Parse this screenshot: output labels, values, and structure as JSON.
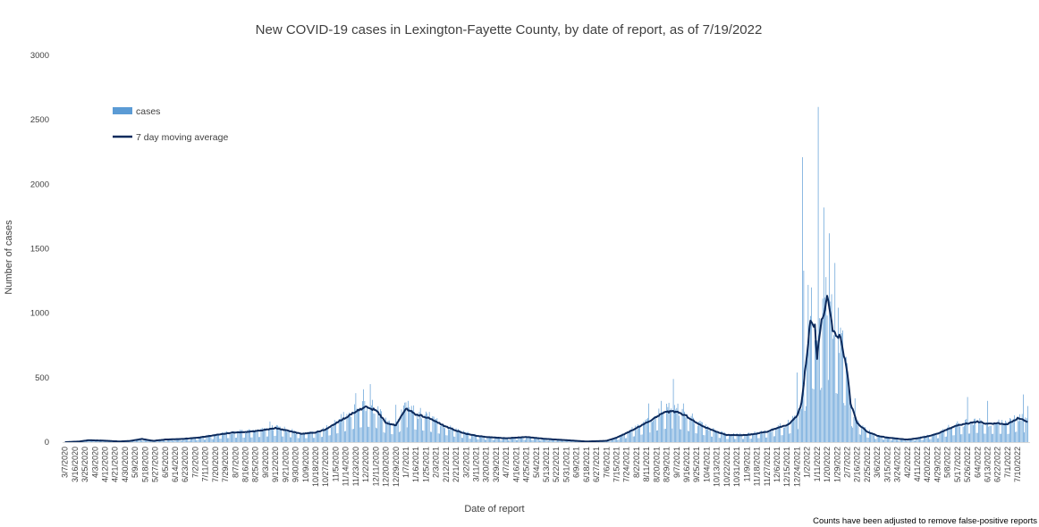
{
  "chart_data": {
    "type": "bar",
    "title": "New COVID-19 cases in Lexington-Fayette County, by date of report, as of 7/19/2022",
    "xlabel": "Date of report",
    "ylabel": "Number of cases",
    "ylim": [
      0,
      3000
    ],
    "y_ticks": [
      0,
      500,
      1000,
      1500,
      2000,
      2500,
      3000
    ],
    "footnote": "Counts have been adjusted to remove false-positive reports",
    "legend": {
      "placement": "top-left",
      "bar_label": "cases",
      "line_label": "7 day moving average"
    },
    "colors": {
      "bars": "#5b9bd5",
      "line": "#0c2a5c"
    },
    "x_start_date": "3/7/2020",
    "x_end_date": "7/19/2022",
    "x_tick_labels": [
      "3/7/2020",
      "3/16/2020",
      "3/25/2020",
      "4/3/2020",
      "4/12/2020",
      "4/21/2020",
      "4/30/2020",
      "5/9/2020",
      "5/18/2020",
      "5/27/2020",
      "6/5/2020",
      "6/14/2020",
      "6/23/2020",
      "7/2/2020",
      "7/11/2020",
      "7/20/2020",
      "7/29/2020",
      "8/7/2020",
      "8/16/2020",
      "8/25/2020",
      "9/3/2020",
      "9/12/2020",
      "9/21/2020",
      "9/30/2020",
      "10/9/2020",
      "10/18/2020",
      "10/27/2020",
      "11/5/2020",
      "11/14/2020",
      "11/23/2020",
      "12/2/2020",
      "12/11/2020",
      "12/20/2020",
      "12/29/2020",
      "1/7/2021",
      "1/16/2021",
      "1/25/2021",
      "2/3/2021",
      "2/12/2021",
      "2/21/2021",
      "3/2/2021",
      "3/11/2021",
      "3/20/2021",
      "3/29/2021",
      "4/7/2021",
      "4/16/2021",
      "4/25/2021",
      "5/4/2021",
      "5/13/2021",
      "5/22/2021",
      "5/31/2021",
      "6/9/2021",
      "6/18/2021",
      "6/27/2021",
      "7/6/2021",
      "7/15/2021",
      "7/24/2021",
      "8/2/2021",
      "8/11/2021",
      "8/20/2021",
      "8/29/2021",
      "9/7/2021",
      "9/16/2021",
      "9/25/2021",
      "10/4/2021",
      "10/13/2021",
      "10/22/2021",
      "10/31/2021",
      "11/9/2021",
      "11/18/2021",
      "11/27/2021",
      "12/6/2021",
      "12/15/2021",
      "12/24/2021",
      "1/2/2022",
      "1/11/2022",
      "1/20/2022",
      "1/29/2022",
      "2/7/2022",
      "2/16/2022",
      "2/25/2022",
      "3/6/2022",
      "3/15/2022",
      "3/24/2022",
      "4/2/2022",
      "4/11/2022",
      "4/20/2022",
      "4/29/2022",
      "5/8/2022",
      "5/17/2022",
      "5/26/2022",
      "6/4/2022",
      "6/13/2022",
      "6/22/2022",
      "7/1/2022",
      "7/10/2022"
    ],
    "trend_points": [
      [
        "3/7/2020",
        0
      ],
      [
        "3/20/2020",
        5
      ],
      [
        "3/28/2020",
        15
      ],
      [
        "4/10/2020",
        12
      ],
      [
        "4/25/2020",
        5
      ],
      [
        "5/5/2020",
        10
      ],
      [
        "5/15/2020",
        25
      ],
      [
        "5/25/2020",
        10
      ],
      [
        "6/5/2020",
        20
      ],
      [
        "6/20/2020",
        25
      ],
      [
        "7/5/2020",
        35
      ],
      [
        "7/20/2020",
        55
      ],
      [
        "8/5/2020",
        75
      ],
      [
        "8/20/2020",
        80
      ],
      [
        "9/3/2020",
        95
      ],
      [
        "9/12/2020",
        110
      ],
      [
        "9/25/2020",
        85
      ],
      [
        "10/5/2020",
        65
      ],
      [
        "10/18/2020",
        75
      ],
      [
        "10/27/2020",
        100
      ],
      [
        "11/10/2020",
        170
      ],
      [
        "11/23/2020",
        240
      ],
      [
        "12/2/2020",
        270
      ],
      [
        "12/11/2020",
        250
      ],
      [
        "12/20/2020",
        150
      ],
      [
        "12/29/2020",
        130
      ],
      [
        "1/7/2021",
        260
      ],
      [
        "1/16/2021",
        215
      ],
      [
        "1/25/2021",
        195
      ],
      [
        "2/3/2021",
        160
      ],
      [
        "2/12/2021",
        120
      ],
      [
        "2/21/2021",
        90
      ],
      [
        "3/2/2021",
        65
      ],
      [
        "3/11/2021",
        50
      ],
      [
        "3/20/2021",
        40
      ],
      [
        "4/7/2021",
        30
      ],
      [
        "4/16/2021",
        35
      ],
      [
        "4/25/2021",
        40
      ],
      [
        "5/13/2021",
        25
      ],
      [
        "5/31/2021",
        15
      ],
      [
        "6/18/2021",
        5
      ],
      [
        "7/6/2021",
        10
      ],
      [
        "7/15/2021",
        35
      ],
      [
        "7/24/2021",
        70
      ],
      [
        "8/2/2021",
        110
      ],
      [
        "8/11/2021",
        150
      ],
      [
        "8/20/2021",
        200
      ],
      [
        "8/29/2021",
        235
      ],
      [
        "9/7/2021",
        235
      ],
      [
        "9/16/2021",
        200
      ],
      [
        "9/25/2021",
        150
      ],
      [
        "10/4/2021",
        110
      ],
      [
        "10/13/2021",
        80
      ],
      [
        "10/22/2021",
        55
      ],
      [
        "11/9/2021",
        55
      ],
      [
        "11/27/2021",
        80
      ],
      [
        "12/6/2021",
        110
      ],
      [
        "12/15/2021",
        130
      ],
      [
        "12/24/2021",
        200
      ],
      [
        "12/28/2021",
        300
      ],
      [
        "1/2/2022",
        700
      ],
      [
        "1/5/2022",
        950
      ],
      [
        "1/9/2022",
        900
      ],
      [
        "1/11/2022",
        650
      ],
      [
        "1/14/2022",
        900
      ],
      [
        "1/20/2022",
        1120
      ],
      [
        "1/25/2022",
        880
      ],
      [
        "2/1/2022",
        800
      ],
      [
        "2/7/2022",
        550
      ],
      [
        "2/10/2022",
        300
      ],
      [
        "2/16/2022",
        150
      ],
      [
        "2/25/2022",
        80
      ],
      [
        "3/6/2022",
        50
      ],
      [
        "3/15/2022",
        35
      ],
      [
        "4/2/2022",
        20
      ],
      [
        "4/11/2022",
        30
      ],
      [
        "4/20/2022",
        45
      ],
      [
        "4/29/2022",
        65
      ],
      [
        "5/8/2022",
        100
      ],
      [
        "5/17/2022",
        130
      ],
      [
        "5/26/2022",
        145
      ],
      [
        "6/4/2022",
        160
      ],
      [
        "6/13/2022",
        140
      ],
      [
        "6/22/2022",
        145
      ],
      [
        "7/1/2022",
        140
      ],
      [
        "7/10/2022",
        185
      ],
      [
        "7/19/2022",
        160
      ]
    ],
    "spikes": [
      [
        "9/7/2020",
        160
      ],
      [
        "11/23/2020",
        380
      ],
      [
        "11/30/2020",
        410
      ],
      [
        "12/6/2020",
        450
      ],
      [
        "12/29/2020",
        290
      ],
      [
        "1/9/2021",
        320
      ],
      [
        "8/13/2021",
        300
      ],
      [
        "8/24/2021",
        320
      ],
      [
        "9/4/2021",
        490
      ],
      [
        "9/13/2021",
        300
      ],
      [
        "12/24/2021",
        540
      ],
      [
        "12/29/2021",
        2210
      ],
      [
        "12/30/2021",
        1330
      ],
      [
        "1/3/2022",
        1220
      ],
      [
        "1/6/2022",
        1200
      ],
      [
        "1/12/2022",
        2600
      ],
      [
        "1/17/2022",
        1820
      ],
      [
        "1/22/2022",
        1620
      ],
      [
        "1/27/2022",
        1390
      ],
      [
        "2/14/2022",
        340
      ],
      [
        "5/26/2022",
        350
      ],
      [
        "6/13/2022",
        320
      ],
      [
        "7/15/2022",
        370
      ],
      [
        "7/19/2022",
        280
      ]
    ]
  }
}
